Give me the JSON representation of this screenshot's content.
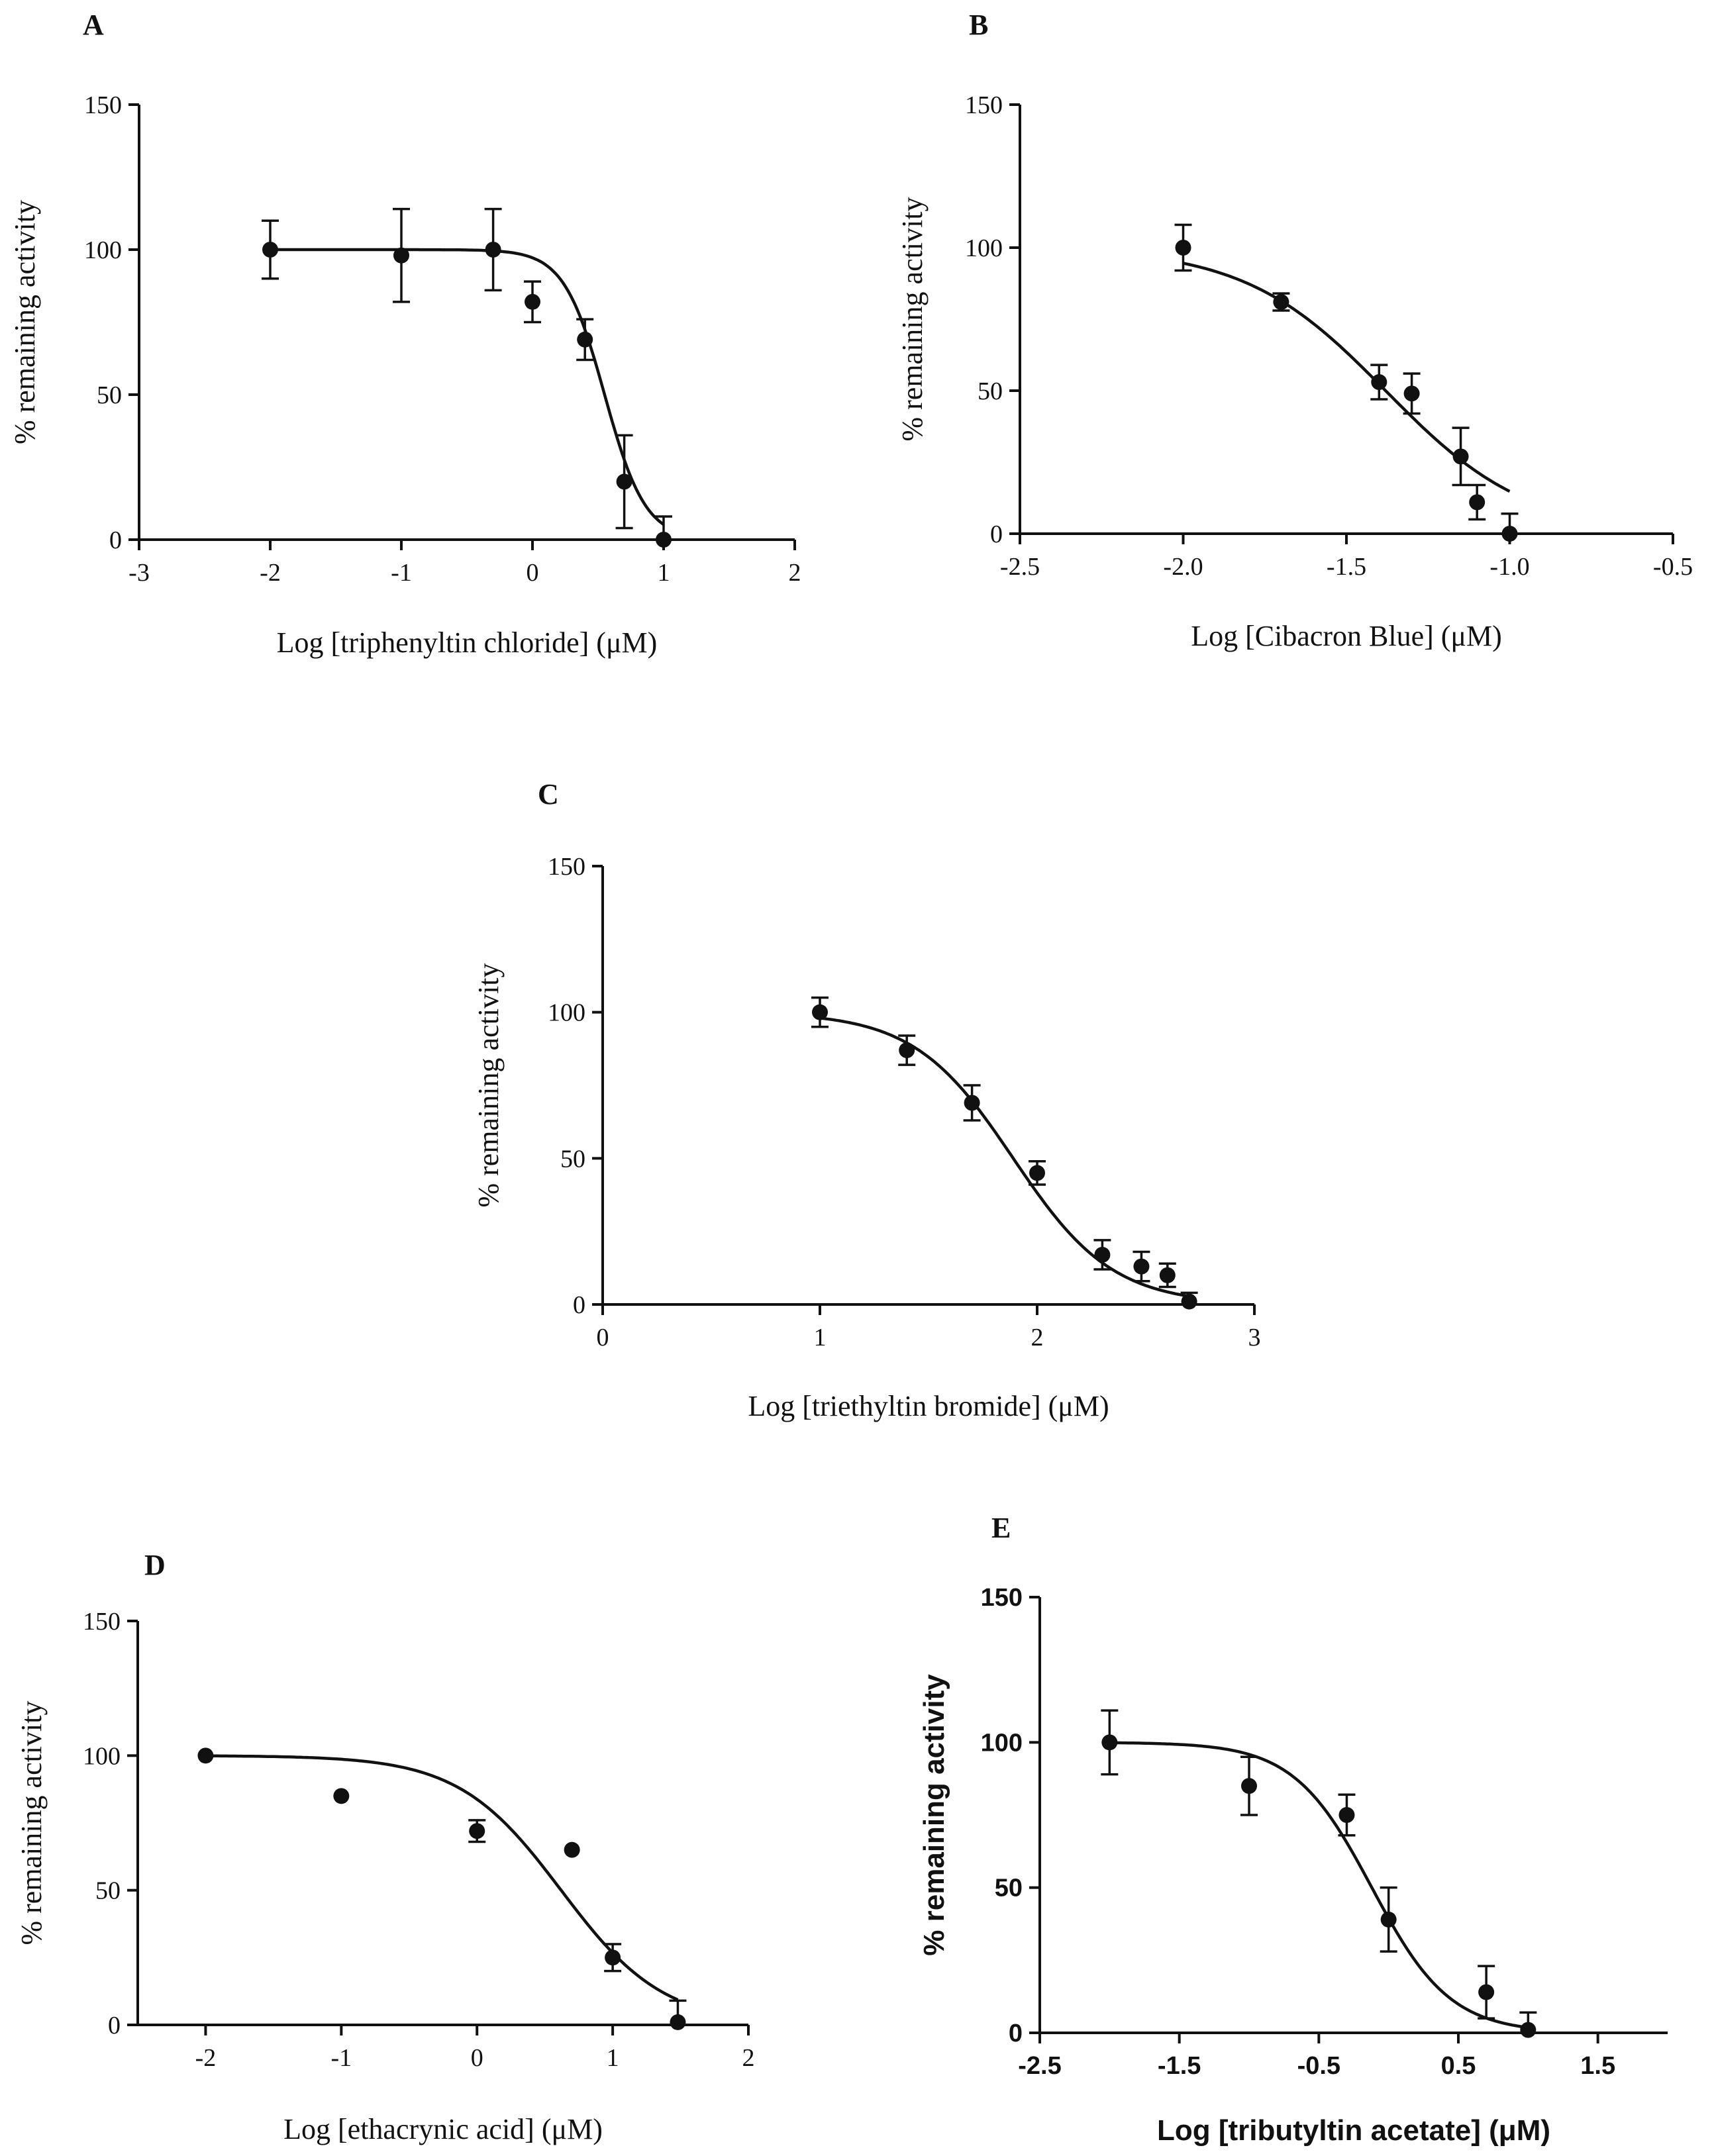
{
  "chart_data": [
    {
      "type": "scatter",
      "panel": "A",
      "title": "",
      "xlabel": "Log [triphenyltin chloride] (μM)",
      "ylabel": "% remaining activity",
      "xlim": [
        -3,
        2
      ],
      "ylim": [
        0,
        150
      ],
      "xticks": [
        -3,
        -2,
        -1,
        0,
        1,
        2
      ],
      "xtick_labels": [
        "-3",
        "-2",
        "-1",
        "0",
        "1",
        "2"
      ],
      "yticks": [
        0,
        50,
        100,
        150
      ],
      "ytick_labels": [
        "0",
        "50",
        "100",
        "150"
      ],
      "points": [
        {
          "x": -2,
          "y": 100,
          "err": 10
        },
        {
          "x": -1,
          "y": 98,
          "err": 16
        },
        {
          "x": -0.3,
          "y": 100,
          "err": 14
        },
        {
          "x": 0,
          "y": 82,
          "err": 7
        },
        {
          "x": 0.4,
          "y": 69,
          "err": 7
        },
        {
          "x": 0.7,
          "y": 20,
          "err": 16
        },
        {
          "x": 1,
          "y": 0,
          "err": 8
        }
      ],
      "fit": {
        "top": 100,
        "bottom": 0,
        "logIC50": 0.55,
        "hill": -2.8,
        "x_range": [
          -2,
          1
        ]
      }
    },
    {
      "type": "scatter",
      "panel": "B",
      "title": "",
      "xlabel": "Log [Cibacron Blue] (μM)",
      "ylabel": "% remaining activity",
      "xlim": [
        -2.5,
        -0.5
      ],
      "ylim": [
        0,
        150
      ],
      "xticks": [
        -2.5,
        -2.0,
        -1.5,
        -1.0,
        -0.5
      ],
      "xtick_labels": [
        "-2.5",
        "-2.0",
        "-1.5",
        "-1.0",
        "-0.5"
      ],
      "yticks": [
        0,
        50,
        100,
        150
      ],
      "ytick_labels": [
        "0",
        "50",
        "100",
        "150"
      ],
      "points": [
        {
          "x": -2.0,
          "y": 100,
          "err": 8
        },
        {
          "x": -1.7,
          "y": 81,
          "err": 3
        },
        {
          "x": -1.4,
          "y": 53,
          "err": 6
        },
        {
          "x": -1.3,
          "y": 49,
          "err": 7
        },
        {
          "x": -1.15,
          "y": 27,
          "err": 10
        },
        {
          "x": -1.1,
          "y": 11,
          "err": 6
        },
        {
          "x": -1.0,
          "y": 0,
          "err": 7
        }
      ],
      "fit": {
        "top": 100,
        "bottom": 0,
        "logIC50": -1.38,
        "hill": -2.0,
        "x_range": [
          -2.0,
          -1.0
        ]
      }
    },
    {
      "type": "scatter",
      "panel": "C",
      "title": "",
      "xlabel": "Log [triethyltin bromide] (μM)",
      "ylabel": "% remaining activity",
      "xlim": [
        0,
        3
      ],
      "ylim": [
        0,
        150
      ],
      "xticks": [
        0,
        1,
        2,
        3
      ],
      "xtick_labels": [
        "0",
        "1",
        "2",
        "3"
      ],
      "yticks": [
        0,
        50,
        100,
        150
      ],
      "ytick_labels": [
        "0",
        "50",
        "100",
        "150"
      ],
      "points": [
        {
          "x": 1,
          "y": 100,
          "err": 5
        },
        {
          "x": 1.4,
          "y": 87,
          "err": 5
        },
        {
          "x": 1.7,
          "y": 69,
          "err": 6
        },
        {
          "x": 2,
          "y": 45,
          "err": 4
        },
        {
          "x": 2.3,
          "y": 17,
          "err": 5
        },
        {
          "x": 2.48,
          "y": 13,
          "err": 5
        },
        {
          "x": 2.6,
          "y": 10,
          "err": 4
        },
        {
          "x": 2.7,
          "y": 1,
          "err": 3
        }
      ],
      "fit": {
        "top": 100,
        "bottom": 0,
        "logIC50": 1.89,
        "hill": -1.9,
        "x_range": [
          1,
          2.7
        ]
      }
    },
    {
      "type": "scatter",
      "panel": "D",
      "title": "",
      "xlabel": "Log [ethacrynic acid] (μM)",
      "ylabel": "% remaining activity",
      "xlim": [
        -2.5,
        2
      ],
      "ylim": [
        0,
        150
      ],
      "xticks": [
        -2,
        -1,
        0,
        1,
        2
      ],
      "xtick_labels": [
        "-2",
        "-1",
        "0",
        "1",
        "2"
      ],
      "yticks": [
        0,
        50,
        100,
        150
      ],
      "ytick_labels": [
        "0",
        "50",
        "100",
        "150"
      ],
      "points": [
        {
          "x": -2,
          "y": 100,
          "err": 0
        },
        {
          "x": -1,
          "y": 85,
          "err": 0
        },
        {
          "x": 0,
          "y": 72,
          "err": 4
        },
        {
          "x": 0.7,
          "y": 65,
          "err": 0
        },
        {
          "x": 1,
          "y": 25,
          "err": 5
        },
        {
          "x": 1.48,
          "y": 1,
          "err": 8
        }
      ],
      "fit": {
        "top": 100,
        "bottom": 0,
        "logIC50": 0.62,
        "hill": -1.15,
        "x_range": [
          -2,
          1.48
        ]
      }
    },
    {
      "type": "scatter",
      "panel": "E",
      "title": "",
      "xlabel": "Log [tributyltin acetate] (μM)",
      "ylabel": "% remaining activity",
      "xlim": [
        -2.5,
        2.0
      ],
      "ylim": [
        0,
        150
      ],
      "xticks": [
        -2.5,
        -1.5,
        -0.5,
        0.5,
        1.5
      ],
      "xtick_labels": [
        "-2.5",
        "-1.5",
        "-0.5",
        "0.5",
        "1.5"
      ],
      "yticks": [
        0,
        50,
        100,
        150
      ],
      "ytick_labels": [
        "0",
        "50",
        "100",
        "150"
      ],
      "points": [
        {
          "x": -2,
          "y": 100,
          "err": 11
        },
        {
          "x": -1,
          "y": 85,
          "err": 10
        },
        {
          "x": -0.3,
          "y": 75,
          "err": 7
        },
        {
          "x": 0,
          "y": 39,
          "err": 11
        },
        {
          "x": 0.7,
          "y": 14,
          "err": 9
        },
        {
          "x": 1,
          "y": 1,
          "err": 6
        }
      ],
      "fit": {
        "top": 100,
        "bottom": 0,
        "logIC50": -0.12,
        "hill": -1.55,
        "x_range": [
          -2,
          1
        ]
      }
    }
  ]
}
